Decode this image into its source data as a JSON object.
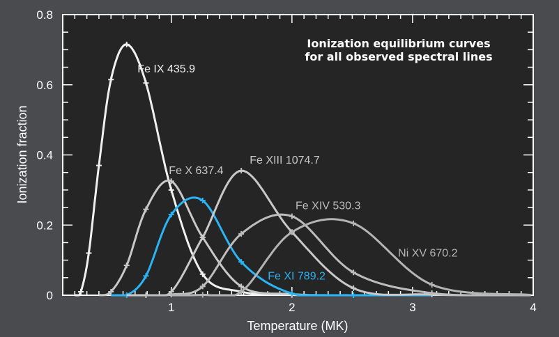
{
  "chart_data": {
    "type": "line",
    "title": [
      "Ionization equilibrium curves",
      "for all observed spectral lines"
    ],
    "xlabel": "Temperature (MK)",
    "ylabel": "Ionization fraction",
    "xlim": [
      0.1,
      4
    ],
    "ylim": [
      0,
      0.8
    ],
    "xticks": [
      1,
      2,
      3,
      4
    ],
    "xtick_labels": [
      "1",
      "2",
      "3",
      "4"
    ],
    "yticks": [
      0,
      0.2,
      0.4,
      0.6,
      0.8
    ],
    "ytick_labels": [
      "0",
      "0.2",
      "0.4",
      "0.6",
      "0.8"
    ],
    "grid": false,
    "background": "#252525",
    "series": [
      {
        "name": "Fe IX 435.9",
        "color": "#f0f0f0",
        "x": [
          0.2,
          0.25,
          0.316,
          0.4,
          0.5,
          0.63,
          0.79,
          1.0,
          1.26,
          1.58,
          2.0,
          2.51
        ],
        "y": [
          0.0,
          0.01,
          0.12,
          0.37,
          0.615,
          0.715,
          0.605,
          0.3,
          0.06,
          0.01,
          0.001,
          0.0
        ]
      },
      {
        "name": "Fe X 637.4",
        "color": "#c8c8c8",
        "x": [
          0.4,
          0.5,
          0.63,
          0.79,
          1.0,
          1.26,
          1.58,
          2.0,
          2.51
        ],
        "y": [
          0.0,
          0.01,
          0.085,
          0.245,
          0.325,
          0.165,
          0.025,
          0.003,
          0.0
        ]
      },
      {
        "name": "Fe XI 789.2",
        "color": "#2ab4f4",
        "x": [
          0.5,
          0.63,
          0.79,
          1.0,
          1.26,
          1.58,
          2.0,
          2.51,
          3.16
        ],
        "y": [
          0.0,
          0.0,
          0.055,
          0.23,
          0.27,
          0.095,
          0.005,
          0.0,
          0.0
        ]
      },
      {
        "name": "Fe XIII 1074.7",
        "color": "#c8c8c8",
        "x": [
          0.63,
          0.79,
          1.0,
          1.26,
          1.58,
          2.0,
          2.51,
          3.16,
          3.98
        ],
        "y": [
          0.0,
          0.0,
          0.01,
          0.165,
          0.355,
          0.18,
          0.02,
          0.002,
          0.0
        ]
      },
      {
        "name": "Fe XIV 530.3",
        "color": "#bdbdbd",
        "x": [
          0.79,
          1.0,
          1.26,
          1.58,
          2.0,
          2.51,
          3.16,
          3.98
        ],
        "y": [
          0.0,
          0.002,
          0.025,
          0.175,
          0.225,
          0.065,
          0.006,
          0.0
        ]
      },
      {
        "name": "Ni XV 670.2",
        "color": "#b4b4b4",
        "x": [
          1.0,
          1.26,
          1.58,
          2.0,
          2.51,
          3.16,
          3.98
        ],
        "y": [
          0.0,
          0.001,
          0.01,
          0.18,
          0.205,
          0.03,
          0.001
        ]
      }
    ],
    "annotations": [
      {
        "text": "Fe IX 435.9",
        "x": 0.72,
        "y": 0.635
      },
      {
        "text": "Fe X 637.4",
        "x": 0.98,
        "y": 0.345
      },
      {
        "text": "Fe XI 789.2",
        "x": 1.8,
        "y": 0.045
      },
      {
        "text": "Fe XIII 1074.7",
        "x": 1.65,
        "y": 0.375
      },
      {
        "text": "Fe XIV 530.3",
        "x": 2.03,
        "y": 0.245
      },
      {
        "text": "Ni XV 670.2",
        "x": 2.88,
        "y": 0.11
      }
    ]
  }
}
